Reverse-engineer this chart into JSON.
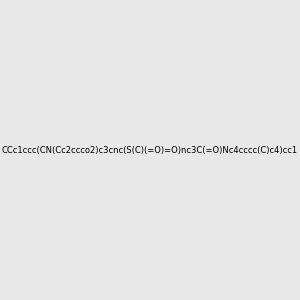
{
  "smiles": "CCc1ccc(CN(Cc2ccco2)c3cnc(S(C)(=O)=O)nc3C(=O)Nc4cccc(C)c4)cc1",
  "image_size": 300,
  "background_color": "#e8e8e8"
}
